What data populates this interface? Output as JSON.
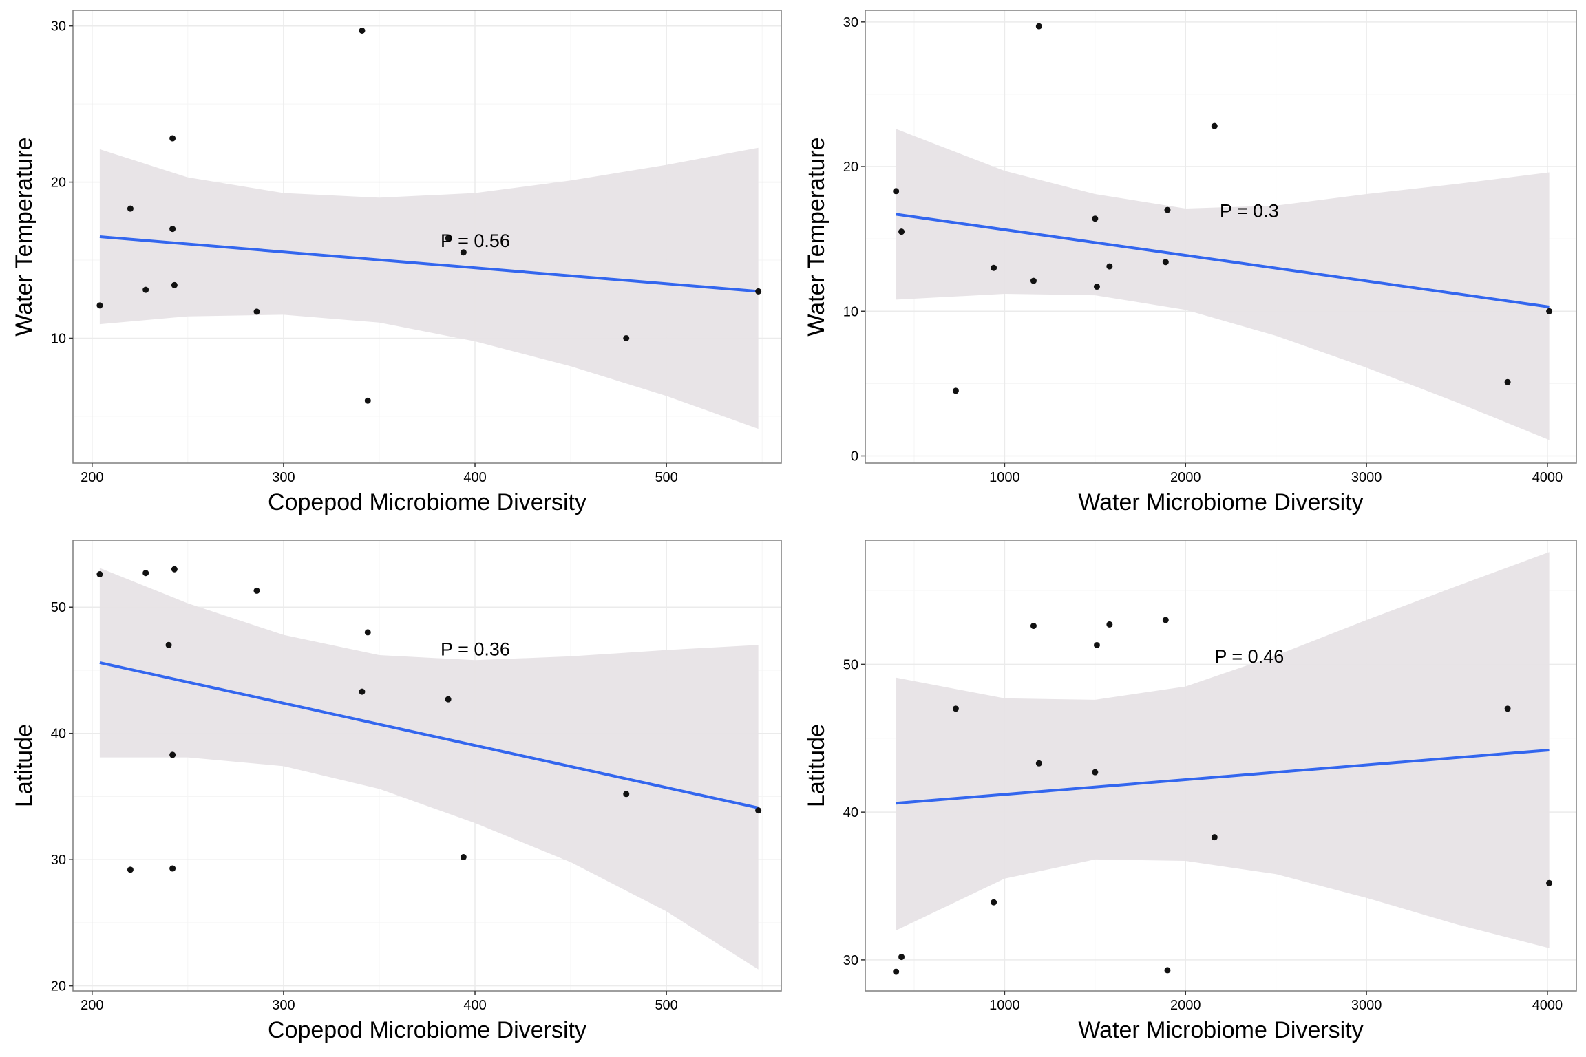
{
  "figure": {
    "background": "#ffffff",
    "colors": {
      "panel_bg": "#ffffff",
      "panel_border": "#7f7f7f",
      "grid_major": "#ebebeb",
      "grid_minor": "#f5f5f5",
      "ci_ribbon": "#e7e3e6",
      "fit_line": "#3366ee",
      "point": "#111111"
    }
  },
  "chart_data": [
    {
      "type": "scatter",
      "xlabel": "Copepod Microbiome Diversity",
      "ylabel": "Water Temperature",
      "xlim": [
        190,
        560
      ],
      "ylim": [
        2.0,
        31.0
      ],
      "xticks": [
        200,
        300,
        400,
        500
      ],
      "yticks": [
        10,
        20,
        30
      ],
      "grid": true,
      "annotation": "P = 0.56",
      "points": [
        {
          "x": 204,
          "y": 12.1
        },
        {
          "x": 220,
          "y": 18.3
        },
        {
          "x": 228,
          "y": 13.1
        },
        {
          "x": 242,
          "y": 22.8
        },
        {
          "x": 242,
          "y": 17.0
        },
        {
          "x": 243,
          "y": 13.4
        },
        {
          "x": 286,
          "y": 11.7
        },
        {
          "x": 341,
          "y": 29.7
        },
        {
          "x": 344,
          "y": 6.0
        },
        {
          "x": 386,
          "y": 16.4
        },
        {
          "x": 394,
          "y": 15.5
        },
        {
          "x": 479,
          "y": 10.0
        },
        {
          "x": 548,
          "y": 13.0
        }
      ],
      "fit": {
        "x": [
          204,
          548
        ],
        "y": [
          16.5,
          13.0
        ]
      },
      "ci_lower": [
        [
          204,
          10.9
        ],
        [
          250,
          11.4
        ],
        [
          300,
          11.5
        ],
        [
          350,
          11.0
        ],
        [
          400,
          9.8
        ],
        [
          450,
          8.2
        ],
        [
          500,
          6.3
        ],
        [
          548,
          4.2
        ]
      ],
      "ci_upper": [
        [
          204,
          22.1
        ],
        [
          250,
          20.3
        ],
        [
          300,
          19.3
        ],
        [
          350,
          19.0
        ],
        [
          400,
          19.3
        ],
        [
          450,
          20.1
        ],
        [
          500,
          21.1
        ],
        [
          548,
          22.2
        ]
      ]
    },
    {
      "type": "scatter",
      "xlabel": "Water Microbiome Diversity",
      "ylabel": "Water Temperature",
      "xlim": [
        230,
        4160
      ],
      "ylim": [
        -0.5,
        30.8
      ],
      "xticks": [
        1000,
        2000,
        3000,
        4000
      ],
      "yticks": [
        0,
        10,
        20,
        30
      ],
      "grid": true,
      "annotation": "P = 0.3",
      "points": [
        {
          "x": 400,
          "y": 18.3
        },
        {
          "x": 430,
          "y": 15.5
        },
        {
          "x": 730,
          "y": 4.5
        },
        {
          "x": 940,
          "y": 13.0
        },
        {
          "x": 1160,
          "y": 12.1
        },
        {
          "x": 1190,
          "y": 29.7
        },
        {
          "x": 1500,
          "y": 16.4
        },
        {
          "x": 1510,
          "y": 11.7
        },
        {
          "x": 1580,
          "y": 13.1
        },
        {
          "x": 1890,
          "y": 13.4
        },
        {
          "x": 1900,
          "y": 17.0
        },
        {
          "x": 2160,
          "y": 22.8
        },
        {
          "x": 3780,
          "y": 5.1
        },
        {
          "x": 4010,
          "y": 10.0
        }
      ],
      "fit": {
        "x": [
          400,
          4010
        ],
        "y": [
          16.7,
          10.3
        ]
      },
      "ci_lower": [
        [
          400,
          10.8
        ],
        [
          1000,
          11.2
        ],
        [
          1500,
          11.1
        ],
        [
          2000,
          10.1
        ],
        [
          2500,
          8.3
        ],
        [
          3000,
          6.1
        ],
        [
          3500,
          3.7
        ],
        [
          4010,
          1.1
        ]
      ],
      "ci_upper": [
        [
          400,
          22.6
        ],
        [
          1000,
          19.7
        ],
        [
          1500,
          18.1
        ],
        [
          2000,
          17.1
        ],
        [
          2500,
          17.3
        ],
        [
          3000,
          18.1
        ],
        [
          3500,
          18.8
        ],
        [
          4010,
          19.6
        ]
      ]
    },
    {
      "type": "scatter",
      "xlabel": "Copepod Microbiome Diversity",
      "ylabel": "Latitude",
      "xlim": [
        190,
        560
      ],
      "ylim": [
        19.6,
        55.3
      ],
      "xticks": [
        200,
        300,
        400,
        500
      ],
      "yticks": [
        20,
        30,
        40,
        50
      ],
      "grid": true,
      "annotation": "P = 0.36",
      "points": [
        {
          "x": 204,
          "y": 52.6
        },
        {
          "x": 220,
          "y": 29.2
        },
        {
          "x": 228,
          "y": 52.7
        },
        {
          "x": 240,
          "y": 47.0
        },
        {
          "x": 242,
          "y": 38.3
        },
        {
          "x": 242,
          "y": 29.3
        },
        {
          "x": 243,
          "y": 53.0
        },
        {
          "x": 286,
          "y": 51.3
        },
        {
          "x": 341,
          "y": 43.3
        },
        {
          "x": 344,
          "y": 48.0
        },
        {
          "x": 386,
          "y": 42.7
        },
        {
          "x": 394,
          "y": 30.2
        },
        {
          "x": 479,
          "y": 35.2
        },
        {
          "x": 548,
          "y": 33.9
        }
      ],
      "fit": {
        "x": [
          204,
          548
        ],
        "y": [
          45.6,
          34.1
        ]
      },
      "ci_lower": [
        [
          204,
          38.1
        ],
        [
          250,
          38.1
        ],
        [
          300,
          37.4
        ],
        [
          350,
          35.6
        ],
        [
          400,
          32.9
        ],
        [
          450,
          29.8
        ],
        [
          500,
          25.9
        ],
        [
          548,
          21.3
        ]
      ],
      "ci_upper": [
        [
          204,
          53.1
        ],
        [
          250,
          50.3
        ],
        [
          300,
          47.8
        ],
        [
          350,
          46.2
        ],
        [
          400,
          45.8
        ],
        [
          450,
          46.1
        ],
        [
          500,
          46.6
        ],
        [
          548,
          47.0
        ]
      ]
    },
    {
      "type": "scatter",
      "xlabel": "Water Microbiome Diversity",
      "ylabel": "Latitude",
      "xlim": [
        230,
        4160
      ],
      "ylim": [
        27.9,
        58.4
      ],
      "xticks": [
        1000,
        2000,
        3000,
        4000
      ],
      "yticks": [
        30,
        40,
        50
      ],
      "grid": true,
      "annotation": "P = 0.46",
      "points": [
        {
          "x": 400,
          "y": 29.2
        },
        {
          "x": 430,
          "y": 30.2
        },
        {
          "x": 730,
          "y": 47.0
        },
        {
          "x": 940,
          "y": 33.9
        },
        {
          "x": 1160,
          "y": 52.6
        },
        {
          "x": 1190,
          "y": 43.3
        },
        {
          "x": 1500,
          "y": 42.7
        },
        {
          "x": 1510,
          "y": 51.3
        },
        {
          "x": 1580,
          "y": 52.7
        },
        {
          "x": 1890,
          "y": 53.0
        },
        {
          "x": 1900,
          "y": 29.3
        },
        {
          "x": 2160,
          "y": 38.3
        },
        {
          "x": 3780,
          "y": 47.0
        },
        {
          "x": 4010,
          "y": 35.2
        }
      ],
      "fit": {
        "x": [
          400,
          4010
        ],
        "y": [
          40.6,
          44.2
        ]
      },
      "ci_lower": [
        [
          400,
          32.0
        ],
        [
          1000,
          35.5
        ],
        [
          1500,
          36.8
        ],
        [
          2000,
          36.7
        ],
        [
          2500,
          35.8
        ],
        [
          3000,
          34.2
        ],
        [
          3500,
          32.4
        ],
        [
          4010,
          30.8
        ]
      ],
      "ci_upper": [
        [
          400,
          49.1
        ],
        [
          1000,
          47.7
        ],
        [
          1500,
          47.6
        ],
        [
          2000,
          48.5
        ],
        [
          2500,
          50.6
        ],
        [
          3000,
          53.0
        ],
        [
          3500,
          55.3
        ],
        [
          4010,
          57.6
        ]
      ]
    }
  ]
}
